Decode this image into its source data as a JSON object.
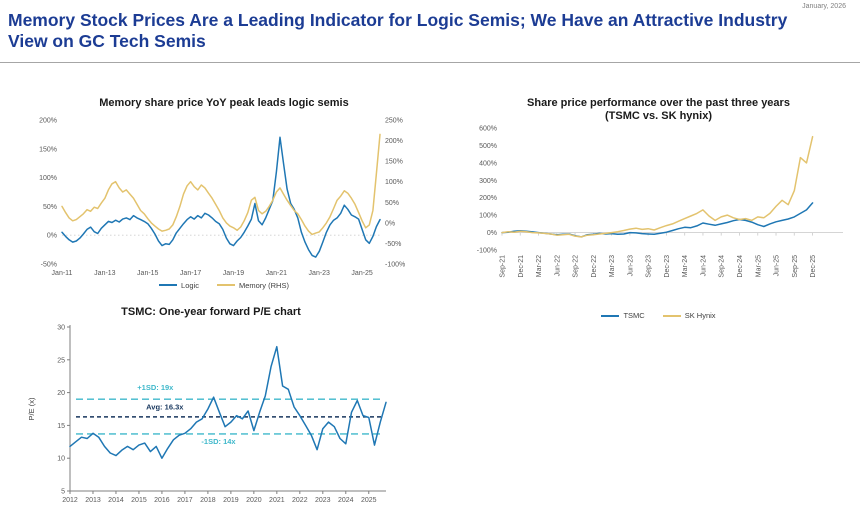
{
  "meta": {
    "date_label": "January, 2026"
  },
  "header": {
    "title": "Memory Stock Prices Are a Leading Indicator for Logic Semis; We Have an Attractive Industry View on GC Tech Semis"
  },
  "colors": {
    "title_blue": "#1C3C94",
    "series_blue": "#1F77B4",
    "series_gold": "#E3C36E",
    "cyan_dash": "#3FB8CB",
    "navy_dash": "#17365D",
    "text_gray": "#595959",
    "rule_gray": "#A6A6A6"
  },
  "chart_data": [
    {
      "type": "line",
      "title": "Memory share price YoY peak leads logic semis",
      "x_labels": [
        {
          "t": "Jan-11",
          "i": 0
        },
        {
          "t": "Jan-13",
          "i": 12
        },
        {
          "t": "Jan-15",
          "i": 24
        },
        {
          "t": "Jan-17",
          "i": 36
        },
        {
          "t": "Jan-19",
          "i": 48
        },
        {
          "t": "Jan-21",
          "i": 60
        },
        {
          "t": "Jan-23",
          "i": 72
        },
        {
          "t": "Jan-25",
          "i": 84
        }
      ],
      "left_axis": {
        "min": -50,
        "max": 200,
        "ticks": [
          {
            "v": 200,
            "t": "200%"
          },
          {
            "v": 150,
            "t": "150%"
          },
          {
            "v": 100,
            "t": "100%"
          },
          {
            "v": 50,
            "t": "50%"
          },
          {
            "v": 0,
            "t": "0%"
          },
          {
            "v": -50,
            "t": "-50%"
          }
        ]
      },
      "right_axis": {
        "min": -100,
        "max": 250,
        "ticks": [
          {
            "v": 250,
            "t": "250%"
          },
          {
            "v": 200,
            "t": "200%"
          },
          {
            "v": 150,
            "t": "150%"
          },
          {
            "v": 100,
            "t": "100%"
          },
          {
            "v": 50,
            "t": "50%"
          },
          {
            "v": 0,
            "t": "0%"
          },
          {
            "v": -50,
            "t": "-50%"
          },
          {
            "v": -100,
            "t": "-100%"
          }
        ]
      },
      "layout": {
        "margins": {
          "l": 38,
          "r": 44,
          "t": 10,
          "b": 16
        },
        "zero_line": "left",
        "zero_dash": "1.5,2.5",
        "rotate_x": false,
        "legend_position": "bottom"
      },
      "series": [
        {
          "name": "Logic",
          "axis": "left",
          "color": "#1F77B4",
          "values": [
            5,
            -2,
            -8,
            -12,
            -10,
            -5,
            2,
            10,
            14,
            6,
            3,
            12,
            18,
            24,
            22,
            26,
            23,
            28,
            30,
            27,
            34,
            30,
            27,
            24,
            20,
            12,
            2,
            -10,
            -18,
            -15,
            -16,
            -8,
            4,
            12,
            20,
            27,
            32,
            28,
            34,
            30,
            38,
            35,
            30,
            24,
            20,
            10,
            -5,
            -15,
            -18,
            -10,
            -4,
            5,
            16,
            28,
            55,
            25,
            18,
            30,
            45,
            60,
            110,
            170,
            125,
            80,
            55,
            45,
            30,
            5,
            -12,
            -25,
            -35,
            -38,
            -28,
            -12,
            5,
            18,
            26,
            30,
            38,
            52,
            45,
            35,
            32,
            28,
            10,
            -8,
            -14,
            -2,
            15,
            27
          ]
        },
        {
          "name": "Memory (RHS)",
          "axis": "right",
          "color": "#E3C36E",
          "values": [
            40,
            25,
            12,
            5,
            8,
            15,
            22,
            32,
            28,
            38,
            35,
            48,
            60,
            80,
            95,
            100,
            85,
            75,
            80,
            70,
            60,
            45,
            30,
            22,
            10,
            0,
            -8,
            -15,
            -20,
            -18,
            -15,
            -5,
            15,
            40,
            70,
            90,
            100,
            88,
            80,
            92,
            85,
            72,
            60,
            45,
            30,
            12,
            0,
            -8,
            -12,
            -18,
            -10,
            5,
            25,
            55,
            62,
            30,
            22,
            28,
            40,
            55,
            75,
            85,
            70,
            55,
            42,
            30,
            22,
            8,
            -8,
            -20,
            -28,
            -25,
            -22,
            -12,
            0,
            15,
            35,
            55,
            65,
            78,
            72,
            60,
            45,
            25,
            5,
            -12,
            -5,
            30,
            120,
            215
          ]
        }
      ]
    },
    {
      "type": "line",
      "title": "Share price performance over the past three years",
      "title2": "(TSMC vs. SK hynix)",
      "x_slots": 57,
      "x_labels": [
        {
          "t": "Sep-21",
          "i": 0
        },
        {
          "t": "Dec-21",
          "i": 3
        },
        {
          "t": "Mar-22",
          "i": 6
        },
        {
          "t": "Jun-22",
          "i": 9
        },
        {
          "t": "Sep-22",
          "i": 12
        },
        {
          "t": "Dec-22",
          "i": 15
        },
        {
          "t": "Mar-23",
          "i": 18
        },
        {
          "t": "Jun-23",
          "i": 21
        },
        {
          "t": "Sep-23",
          "i": 24
        },
        {
          "t": "Dec-23",
          "i": 27
        },
        {
          "t": "Mar-24",
          "i": 30
        },
        {
          "t": "Jun-24",
          "i": 33
        },
        {
          "t": "Sep-24",
          "i": 36
        },
        {
          "t": "Dec-24",
          "i": 39
        },
        {
          "t": "Mar-25",
          "i": 42
        },
        {
          "t": "Jun-25",
          "i": 45
        },
        {
          "t": "Sep-25",
          "i": 48
        },
        {
          "t": "Dec-25",
          "i": 51
        }
      ],
      "left_axis": {
        "min": -100,
        "max": 600,
        "ticks": [
          {
            "v": 600,
            "t": "600%"
          },
          {
            "v": 500,
            "t": "500%"
          },
          {
            "v": 400,
            "t": "400%"
          },
          {
            "v": 300,
            "t": "300%"
          },
          {
            "v": 200,
            "t": "200%"
          },
          {
            "v": 100,
            "t": "100%"
          },
          {
            "v": 0,
            "t": "0%"
          },
          {
            "v": -100,
            "t": "-100%"
          }
        ]
      },
      "layout": {
        "margins": {
          "l": 40,
          "r": 12,
          "t": 6,
          "b": 60
        },
        "zero_line": "left",
        "zero_ticks": true,
        "rotate_x": true,
        "legend_position": "bottom"
      },
      "series": [
        {
          "name": "TSMC",
          "axis": "left",
          "color": "#1F77B4",
          "values": [
            0,
            2,
            8,
            10,
            8,
            4,
            0,
            -4,
            -8,
            -12,
            -10,
            -8,
            -18,
            -25,
            -12,
            -10,
            -5,
            -8,
            -6,
            -10,
            -8,
            0,
            -2,
            -6,
            -8,
            -10,
            -4,
            2,
            12,
            22,
            30,
            28,
            38,
            55,
            48,
            42,
            50,
            58,
            68,
            75,
            70,
            60,
            45,
            35,
            50,
            62,
            70,
            78,
            90,
            110,
            130,
            170
          ]
        },
        {
          "name": "SK Hynix",
          "axis": "left",
          "color": "#E3C36E",
          "values": [
            0,
            5,
            2,
            8,
            5,
            0,
            -2,
            -5,
            -8,
            -15,
            -12,
            -10,
            -20,
            -25,
            -15,
            -12,
            -8,
            -5,
            0,
            5,
            12,
            20,
            25,
            18,
            22,
            15,
            28,
            40,
            50,
            65,
            80,
            95,
            110,
            130,
            95,
            70,
            90,
            100,
            85,
            75,
            80,
            70,
            90,
            85,
            110,
            150,
            185,
            160,
            240,
            430,
            400,
            550
          ]
        }
      ]
    },
    {
      "type": "line",
      "title": "TSMC: One-year forward P/E chart",
      "ylabel": "P/E (x)",
      "x_labels": [
        {
          "t": "2012",
          "i": 0
        },
        {
          "t": "2013",
          "i": 4
        },
        {
          "t": "2014",
          "i": 8
        },
        {
          "t": "2015",
          "i": 12
        },
        {
          "t": "2016",
          "i": 16
        },
        {
          "t": "2017",
          "i": 20
        },
        {
          "t": "2018",
          "i": 24
        },
        {
          "t": "2019",
          "i": 28
        },
        {
          "t": "2020",
          "i": 32
        },
        {
          "t": "2021",
          "i": 36
        },
        {
          "t": "2022",
          "i": 40
        },
        {
          "t": "2023",
          "i": 44
        },
        {
          "t": "2024",
          "i": 48
        },
        {
          "t": "2025",
          "i": 52
        }
      ],
      "left_axis": {
        "min": 5,
        "max": 30,
        "ticks": [
          {
            "v": 30,
            "t": "30"
          },
          {
            "v": 25,
            "t": "25"
          },
          {
            "v": 20,
            "t": "20"
          },
          {
            "v": 15,
            "t": "15"
          },
          {
            "v": 10,
            "t": "10"
          },
          {
            "v": 5,
            "t": "5"
          }
        ]
      },
      "layout": {
        "margins": {
          "l": 48,
          "r": 14,
          "t": 8,
          "b": 20
        },
        "frame": true,
        "rotate_x": false,
        "legend_position": "none"
      },
      "ref_lines": [
        {
          "label": "+1SD",
          "value": 19,
          "color": "#3FB8CB",
          "dash": "7,4"
        },
        {
          "label": "Avg",
          "value": 16.3,
          "color": "#17365D",
          "dash": "4,3"
        },
        {
          "label": "-1SD",
          "value": 13.7,
          "color": "#3FB8CB",
          "dash": "7,4"
        }
      ],
      "annotations": [
        {
          "t": "+1SD: 19x",
          "xf": 0.27,
          "yv": 20.4,
          "color": "#3FB8CB"
        },
        {
          "t": "Avg: 16.3x",
          "xf": 0.3,
          "yv": 17.4,
          "color": "#17365D"
        },
        {
          "t": "-1SD: 14x",
          "xf": 0.47,
          "yv": 12.2,
          "color": "#3FB8CB"
        }
      ],
      "series": [
        {
          "name": "TSMC forward P/E",
          "axis": "left",
          "color": "#1F77B4",
          "values": [
            11.8,
            12.5,
            13.2,
            13.0,
            13.8,
            13.2,
            11.8,
            10.8,
            10.4,
            11.2,
            11.8,
            11.3,
            12.0,
            12.3,
            11.0,
            11.8,
            10.0,
            11.5,
            12.8,
            13.5,
            13.8,
            14.5,
            15.5,
            16.0,
            17.5,
            19.3,
            17.0,
            14.8,
            15.5,
            16.5,
            16.0,
            17.2,
            14.2,
            17.0,
            19.5,
            24.0,
            27.0,
            21.0,
            20.5,
            17.8,
            16.5,
            15.0,
            13.5,
            11.3,
            14.5,
            15.5,
            14.8,
            13.0,
            12.2,
            17.0,
            18.8,
            16.5,
            16.2,
            12.0,
            15.5,
            18.5
          ]
        }
      ]
    }
  ]
}
